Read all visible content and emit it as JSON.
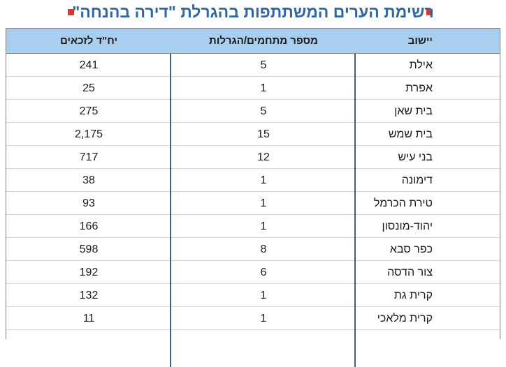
{
  "title": {
    "text": "רשימת הערים המשתתפות בהגרלת \"דירה בהנחה\"",
    "marker_color": "#e5352b",
    "text_color": "#2f66a6"
  },
  "table": {
    "header_bg": "#a9cff0",
    "columns": {
      "town": "יישוב",
      "draws": "מספר מתחמים/הגרלות",
      "units": "יח\"ד לזכאים"
    },
    "rows": [
      {
        "town": "אילת",
        "draws": "5",
        "units": "241"
      },
      {
        "town": "אפרת",
        "draws": "1",
        "units": "25"
      },
      {
        "town": "בית שאן",
        "draws": "5",
        "units": "275"
      },
      {
        "town": "בית שמש",
        "draws": "15",
        "units": "2,175"
      },
      {
        "town": "בני עיש",
        "draws": "12",
        "units": "717"
      },
      {
        "town": "דימונה",
        "draws": "1",
        "units": "38"
      },
      {
        "town": "טירת הכרמל",
        "draws": "1",
        "units": "93"
      },
      {
        "town": "יהוד-מונסון",
        "draws": "1",
        "units": "166"
      },
      {
        "town": "כפר סבא",
        "draws": "8",
        "units": "598"
      },
      {
        "town": "צור הדסה",
        "draws": "6",
        "units": "192"
      },
      {
        "town": "קרית גת",
        "draws": "1",
        "units": "132"
      },
      {
        "town": "קרית מלאכי",
        "draws": "1",
        "units": "11"
      }
    ]
  }
}
